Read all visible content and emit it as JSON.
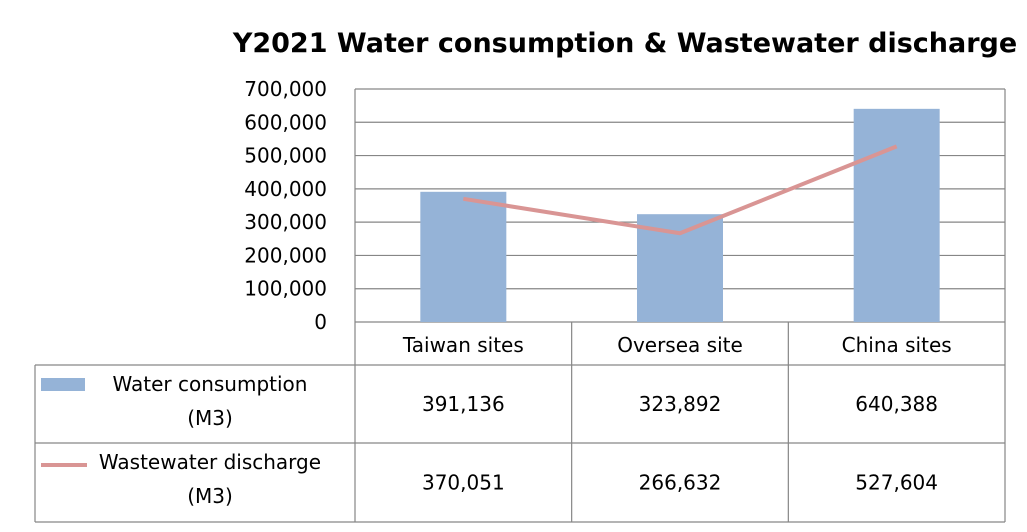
{
  "chart_data": {
    "type": "bar",
    "title": "Y2021  Water consumption  & Wastewater discharge",
    "categories": [
      "Taiwan sites",
      "Oversea site",
      "China sites"
    ],
    "ylim": [
      0,
      700000
    ],
    "yticks": [
      "700,000",
      "600,000",
      "500,000",
      "400,000",
      "300,000",
      "200,000",
      "100,000",
      "0"
    ],
    "grid": true,
    "legend": "data-table",
    "series": [
      {
        "name": "Water consumption",
        "unit": "(M3)",
        "kind": "bar",
        "color": "#95b3d7",
        "values": [
          391136,
          323892,
          640388
        ],
        "labels": [
          "391,136",
          "323,892",
          "640,388"
        ]
      },
      {
        "name": "Wastewater discharge",
        "unit": "(M3)",
        "kind": "line",
        "color": "#d99594",
        "values": [
          370051,
          266632,
          527604
        ],
        "labels": [
          "370,051",
          "266,632",
          "527,604"
        ]
      }
    ]
  }
}
